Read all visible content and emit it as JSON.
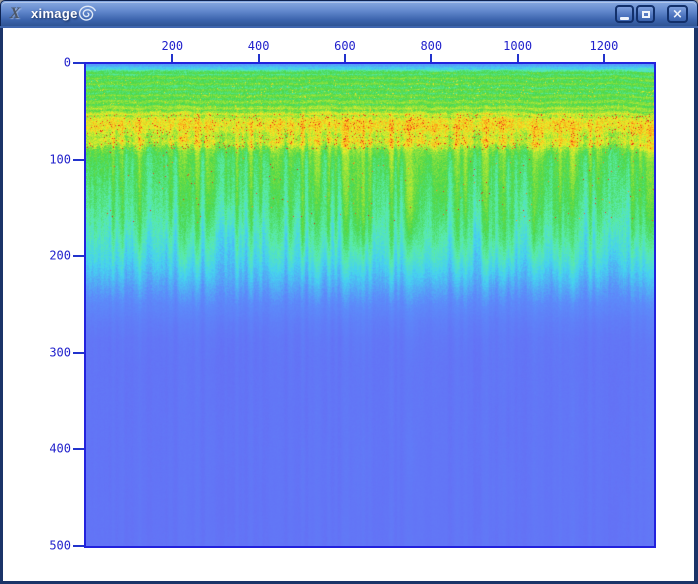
{
  "window": {
    "title": "ximage",
    "icon": "X",
    "buttons": {
      "minimize": "minimize",
      "maximize": "maximize",
      "close_glyph": "×"
    }
  },
  "colors": {
    "titlebar_top": "#89abe2",
    "titlebar_bottom": "#2e5494",
    "frame_border": "#1b3468",
    "canvas_bg": "#ffffff",
    "axis_text": "#2222cc",
    "plot_border": "#2222dd",
    "deep_background": "#6470f5"
  },
  "chart_data": {
    "type": "heatmap",
    "title": "",
    "xlabel": "",
    "ylabel": "",
    "x_axis": {
      "position": "top",
      "ticks": [
        200,
        400,
        600,
        800,
        1000,
        1200
      ],
      "range": [
        0,
        1316
      ]
    },
    "y_axis": {
      "position": "left",
      "ticks": [
        0,
        100,
        200,
        300,
        400,
        500
      ],
      "range": [
        0,
        499
      ]
    },
    "legend": "none",
    "grid": "off",
    "colormap": [
      [
        0.0,
        "#6470f5"
      ],
      [
        0.1,
        "#5c8cfa"
      ],
      [
        0.22,
        "#46d2f0"
      ],
      [
        0.33,
        "#5aebaa"
      ],
      [
        0.45,
        "#4bd74b"
      ],
      [
        0.58,
        "#aae637"
      ],
      [
        0.68,
        "#f2eb28"
      ],
      [
        0.78,
        "#faa519"
      ],
      [
        0.87,
        "#f5551e"
      ],
      [
        1.0,
        "#e11414"
      ]
    ],
    "render": {
      "profile": [
        [
          0,
          0.13
        ],
        [
          2,
          0.17
        ],
        [
          5,
          0.3
        ],
        [
          9,
          0.44
        ],
        [
          16,
          0.47
        ],
        [
          24,
          0.44
        ],
        [
          32,
          0.47
        ],
        [
          40,
          0.5
        ],
        [
          46,
          0.55
        ],
        [
          50,
          0.6
        ],
        [
          54,
          0.66
        ],
        [
          58,
          0.7
        ],
        [
          64,
          0.7
        ],
        [
          69,
          0.64
        ],
        [
          73,
          0.62
        ],
        [
          77,
          0.67
        ],
        [
          81,
          0.62
        ],
        [
          86,
          0.52
        ],
        [
          94,
          0.47
        ],
        [
          108,
          0.45
        ],
        [
          122,
          0.43
        ],
        [
          136,
          0.41
        ],
        [
          150,
          0.385
        ],
        [
          165,
          0.35
        ],
        [
          180,
          0.31
        ],
        [
          195,
          0.26
        ],
        [
          210,
          0.2
        ],
        [
          225,
          0.14
        ],
        [
          240,
          0.09
        ],
        [
          258,
          0.05
        ],
        [
          275,
          0.03
        ],
        [
          300,
          0.022
        ],
        [
          481,
          0.02
        ]
      ],
      "noise_amp": [
        [
          0,
          0.02
        ],
        [
          6,
          0.05
        ],
        [
          45,
          0.06
        ],
        [
          50,
          0.08
        ],
        [
          84,
          0.08
        ],
        [
          90,
          0.05
        ],
        [
          160,
          0.04
        ],
        [
          220,
          0.02
        ],
        [
          260,
          0.008
        ],
        [
          481,
          0.005
        ]
      ],
      "streak_weight": [
        [
          0,
          0
        ],
        [
          35,
          0.005
        ],
        [
          60,
          0.05
        ],
        [
          80,
          0.11
        ],
        [
          170,
          0.11
        ],
        [
          215,
          0.05
        ],
        [
          245,
          0.02
        ],
        [
          300,
          0.013
        ],
        [
          481,
          0.012
        ]
      ],
      "band_shift": [
        [
          0,
          0
        ],
        [
          36,
          0
        ],
        [
          48,
          1
        ],
        [
          96,
          1
        ],
        [
          110,
          0
        ],
        [
          481,
          0
        ]
      ],
      "speckles": {
        "orange_rows": [
          16,
          50
        ],
        "orange_p": 0.018,
        "red_band_rows": [
          50,
          85
        ],
        "red_band_p": 0.03,
        "red_dash_rows": [
          85,
          160
        ],
        "red_dash_p": 0.0035
      },
      "seed": 1234
    }
  }
}
